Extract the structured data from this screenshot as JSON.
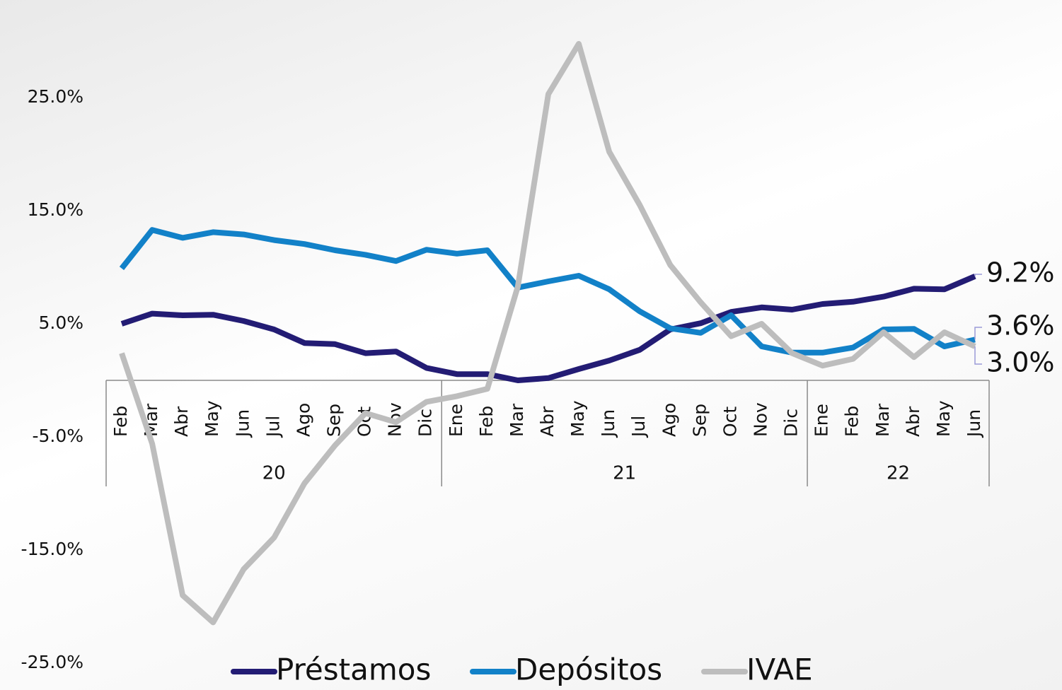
{
  "chart_data": {
    "type": "line",
    "categories": [
      "Feb",
      "Mar",
      "Abr",
      "May",
      "Jun",
      "Jul",
      "Ago",
      "Sep",
      "Oct",
      "Nov",
      "Dic",
      "Ene",
      "Feb",
      "Mar",
      "Abr",
      "May",
      "Jun",
      "Jul",
      "Ago",
      "Sep",
      "Oct",
      "Nov",
      "Dic",
      "Ene",
      "Feb",
      "Mar",
      "Abr",
      "May",
      "Jun"
    ],
    "year_groups": [
      {
        "label": "20",
        "count": 11
      },
      {
        "label": "21",
        "count": 12
      },
      {
        "label": "22",
        "count": 6
      }
    ],
    "series": [
      {
        "name": "Préstamos",
        "color": "#231c74",
        "end_label": "9.2%",
        "values": [
          5.0,
          5.9,
          5.75,
          5.8,
          5.25,
          4.5,
          3.3,
          3.2,
          2.4,
          2.55,
          1.1,
          0.55,
          0.55,
          0.0,
          0.2,
          1.0,
          1.75,
          2.7,
          4.5,
          5.05,
          6.05,
          6.45,
          6.25,
          6.75,
          6.95,
          7.4,
          8.1,
          8.05,
          9.2
        ]
      },
      {
        "name": "Depósitos",
        "color": "#1281c8",
        "end_label": "3.6%",
        "values": [
          9.9,
          13.3,
          12.6,
          13.1,
          12.9,
          12.4,
          12.05,
          11.5,
          11.1,
          10.55,
          11.55,
          11.2,
          11.5,
          8.2,
          8.75,
          9.25,
          8.05,
          6.1,
          4.6,
          4.2,
          5.75,
          3.0,
          2.45,
          2.45,
          2.9,
          4.5,
          4.55,
          3.0,
          3.6
        ]
      },
      {
        "name": "IVAE",
        "color": "#bdbdbd",
        "end_label": "3.0%",
        "values": [
          2.4,
          -5.6,
          -19.0,
          -21.4,
          -16.7,
          -13.9,
          -9.1,
          -5.75,
          -2.9,
          -3.7,
          -1.9,
          -1.4,
          -0.75,
          8.3,
          25.3,
          29.75,
          20.2,
          15.5,
          10.2,
          6.9,
          3.9,
          5.0,
          2.4,
          1.3,
          1.9,
          4.25,
          2.05,
          4.25,
          3.0
        ]
      }
    ],
    "ylim": [
      -25,
      30
    ],
    "yticks": [
      {
        "value": -25,
        "label": "-25.0%"
      },
      {
        "value": -15,
        "label": "-15.0%"
      },
      {
        "value": -5,
        "label": "-5.0%"
      },
      {
        "value": 5,
        "label": "5.0%"
      },
      {
        "value": 15,
        "label": "15.0%"
      },
      {
        "value": 25,
        "label": "25.0%"
      }
    ]
  }
}
